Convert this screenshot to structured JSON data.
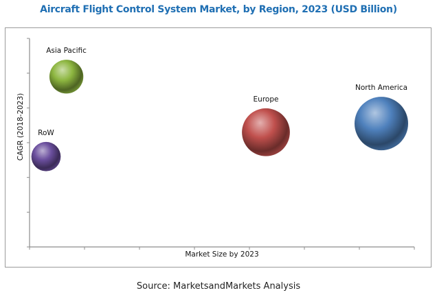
{
  "title": "Aircraft Flight Control System Market, by Region, 2023 (USD Billion)",
  "source": "Source: MarketsandMarkets Analysis",
  "chart_data": {
    "type": "scatter",
    "subtype": "bubble",
    "title": "Aircraft Flight Control System Market, by Region, 2023 (USD Billion)",
    "xlabel": "Market Size by 2023",
    "ylabel": "CAGR (2018-2023)",
    "x_tick_labels": [],
    "y_tick_labels": [],
    "xlim": [
      0,
      7
    ],
    "ylim": [
      0,
      6
    ],
    "x_ticks": 8,
    "y_ticks": 7,
    "grid": false,
    "legend": "none",
    "series": [
      {
        "name": "Asia Pacific",
        "x": 0.67,
        "y": 4.9,
        "size": 0.4,
        "color": "#8db640"
      },
      {
        "name": "RoW",
        "x": 0.3,
        "y": 2.6,
        "size": 0.3,
        "color": "#6b4f9e"
      },
      {
        "name": "Europe",
        "x": 4.3,
        "y": 3.3,
        "size": 0.8,
        "color": "#c0504d"
      },
      {
        "name": "North America",
        "x": 6.4,
        "y": 3.55,
        "size": 1.0,
        "color": "#4f81bd"
      }
    ]
  }
}
